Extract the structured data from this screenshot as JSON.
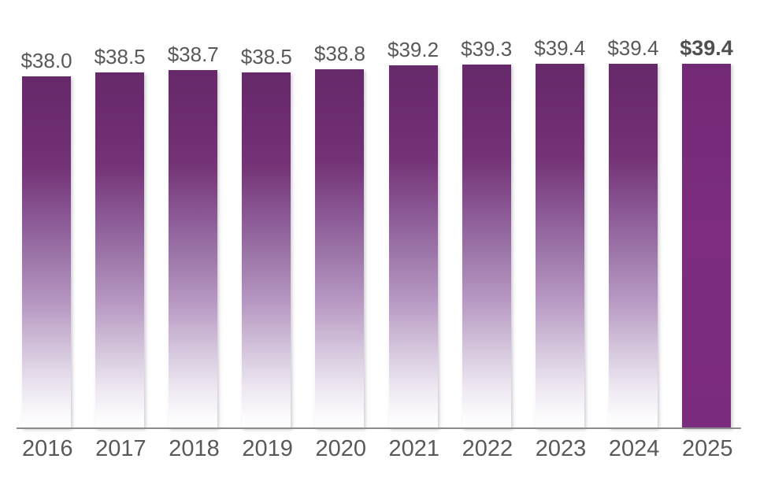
{
  "chart_data": {
    "type": "bar",
    "categories": [
      "2016",
      "2017",
      "2018",
      "2019",
      "2020",
      "2021",
      "2022",
      "2023",
      "2024",
      "2025"
    ],
    "values": [
      38.0,
      38.5,
      38.7,
      38.5,
      38.8,
      39.2,
      39.3,
      39.4,
      39.4,
      39.4
    ],
    "labels": [
      "$38.0",
      "$38.5",
      "$38.7",
      "$38.5",
      "$38.8",
      "$39.2",
      "$39.3",
      "$39.4",
      "$39.4",
      "$39.4"
    ],
    "title": "",
    "xlabel": "",
    "ylabel": "",
    "ylim": [
      0,
      39.4
    ],
    "grid": false,
    "legend_position": "none",
    "highlight_index": 9,
    "colors": {
      "bar_gradient_top": "#66296a",
      "bar_gradient_bottom": "#ffffff",
      "bar_highlight": "#7b2b7d",
      "value_label_text": "#595959",
      "highlight_label_text": "#4f4f4f",
      "year_label_text": "#595959",
      "axis_line": "#8c8c8c",
      "background": "#ffffff"
    }
  }
}
